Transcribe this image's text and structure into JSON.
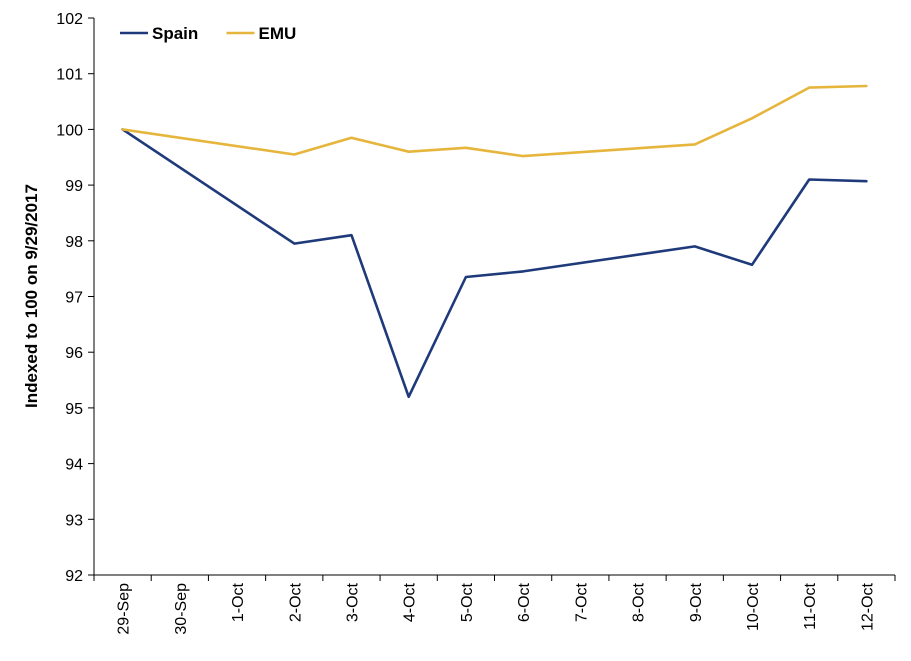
{
  "chart_data": {
    "type": "line",
    "title": "",
    "xlabel": "",
    "ylabel": "Indexed to 100 on 9/29/2017",
    "categories": [
      "29-Sep",
      "30-Sep",
      "1-Oct",
      "2-Oct",
      "3-Oct",
      "4-Oct",
      "5-Oct",
      "6-Oct",
      "7-Oct",
      "8-Oct",
      "9-Oct",
      "10-Oct",
      "11-Oct",
      "12-Oct"
    ],
    "yticks": [
      "92",
      "93",
      "94",
      "95",
      "96",
      "97",
      "98",
      "99",
      "100",
      "101",
      "102"
    ],
    "ylim": [
      92,
      102
    ],
    "grid": false,
    "legend_position": "top-left",
    "series": [
      {
        "name": "Spain",
        "color": "#1f3a7a",
        "points": [
          [
            0,
            100.0
          ],
          [
            3,
            97.95
          ],
          [
            4,
            98.1
          ],
          [
            5,
            95.2
          ],
          [
            6,
            97.35
          ],
          [
            7,
            97.45
          ],
          [
            10,
            97.9
          ],
          [
            11,
            97.57
          ],
          [
            12,
            99.1
          ],
          [
            13,
            99.07
          ]
        ]
      },
      {
        "name": "EMU",
        "color": "#e6b53c",
        "points": [
          [
            0,
            100.0
          ],
          [
            3,
            99.55
          ],
          [
            4,
            99.85
          ],
          [
            5,
            99.6
          ],
          [
            6,
            99.67
          ],
          [
            7,
            99.52
          ],
          [
            10,
            99.73
          ],
          [
            11,
            100.2
          ],
          [
            12,
            100.75
          ],
          [
            13,
            100.78
          ]
        ]
      }
    ]
  }
}
